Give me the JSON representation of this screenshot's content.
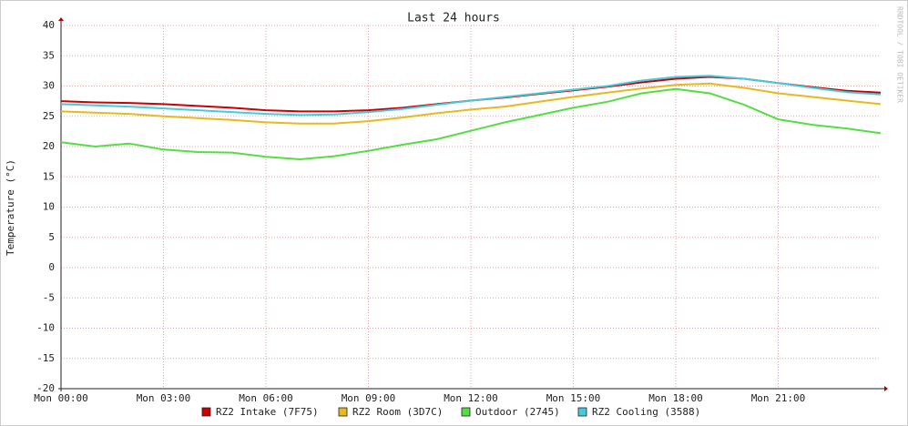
{
  "chart_data": {
    "type": "line",
    "title": "Last 24 hours",
    "y_label": "Temperature (°C)",
    "watermark": "RRDTOOL / TOBI OETIKER",
    "x": [
      0,
      1,
      2,
      3,
      4,
      5,
      6,
      7,
      8,
      9,
      10,
      11,
      12,
      13,
      14,
      15,
      16,
      17,
      18,
      19,
      20,
      21,
      22,
      23,
      24
    ],
    "xlim": [
      0,
      24
    ],
    "xticks": [
      {
        "value": 0,
        "label": "Mon 00:00"
      },
      {
        "value": 3,
        "label": "Mon 03:00"
      },
      {
        "value": 6,
        "label": "Mon 06:00"
      },
      {
        "value": 9,
        "label": "Mon 09:00"
      },
      {
        "value": 12,
        "label": "Mon 12:00"
      },
      {
        "value": 15,
        "label": "Mon 15:00"
      },
      {
        "value": 18,
        "label": "Mon 18:00"
      },
      {
        "value": 21,
        "label": "Mon 21:00"
      }
    ],
    "ylim": [
      -20,
      40
    ],
    "yticks": [
      -20,
      -15,
      -10,
      -5,
      0,
      5,
      10,
      15,
      20,
      25,
      30,
      35,
      40
    ],
    "grid": true,
    "series": [
      {
        "name": "RZ2 Intake (7F75)",
        "color": "#cc0000",
        "values": [
          27.5,
          27.3,
          27.2,
          27.0,
          26.7,
          26.4,
          26.0,
          25.8,
          25.8,
          26.0,
          26.4,
          27.0,
          27.6,
          28.1,
          28.7,
          29.3,
          29.9,
          30.6,
          31.2,
          31.5,
          31.2,
          30.5,
          29.8,
          29.2,
          28.9
        ]
      },
      {
        "name": "RZ2 Room (3D7C)",
        "color": "#e8b820",
        "values": [
          25.8,
          25.6,
          25.4,
          25.0,
          24.7,
          24.4,
          24.0,
          23.8,
          23.8,
          24.2,
          24.8,
          25.5,
          26.1,
          26.6,
          27.4,
          28.2,
          28.9,
          29.6,
          30.2,
          30.4,
          29.7,
          28.8,
          28.2,
          27.6,
          27.0
        ]
      },
      {
        "name": "Outdoor (2745)",
        "color": "#55dd44",
        "values": [
          20.7,
          20.0,
          20.5,
          19.5,
          19.1,
          19.0,
          18.3,
          17.9,
          18.4,
          19.3,
          20.3,
          21.2,
          22.6,
          24.0,
          25.2,
          26.4,
          27.4,
          28.8,
          29.5,
          28.8,
          26.9,
          24.5,
          23.6,
          23.0,
          22.2
        ]
      },
      {
        "name": "RZ2 Cooling (3588)",
        "color": "#44ccdd",
        "values": [
          27.0,
          26.8,
          26.6,
          26.3,
          26.0,
          25.7,
          25.4,
          25.2,
          25.3,
          25.7,
          26.2,
          26.9,
          27.6,
          28.2,
          28.8,
          29.4,
          30.0,
          30.9,
          31.5,
          31.7,
          31.2,
          30.5,
          29.7,
          29.0,
          28.6
        ]
      }
    ]
  }
}
